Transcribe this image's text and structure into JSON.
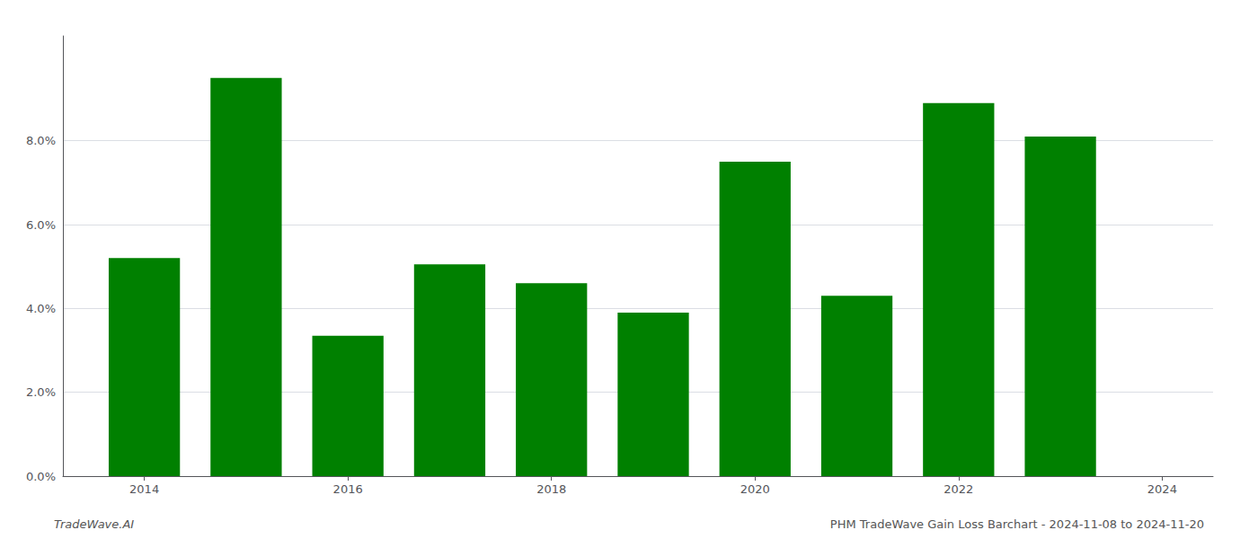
{
  "chart_data": {
    "type": "bar",
    "x": [
      2014,
      2015,
      2016,
      2017,
      2018,
      2019,
      2020,
      2021,
      2022,
      2023
    ],
    "values": [
      0.052,
      0.095,
      0.0335,
      0.0505,
      0.046,
      0.039,
      0.075,
      0.043,
      0.089,
      0.081
    ],
    "color": "#008000",
    "xlim": [
      2013.2,
      2024.5
    ],
    "xticks": [
      2014,
      2016,
      2018,
      2020,
      2022,
      2024
    ],
    "ylim": [
      0,
      0.105
    ],
    "yticks": [
      {
        "value": 0.0,
        "label": "0.0%"
      },
      {
        "value": 0.02,
        "label": "2.0%"
      },
      {
        "value": 0.04,
        "label": "4.0%"
      },
      {
        "value": 0.06,
        "label": "6.0%"
      },
      {
        "value": 0.08,
        "label": "8.0%"
      }
    ],
    "grid": true,
    "annotations": [
      "TradeWave.AI",
      "PHM TradeWave Gain Loss Barchart - 2024-11-08 to 2024-11-20"
    ]
  }
}
